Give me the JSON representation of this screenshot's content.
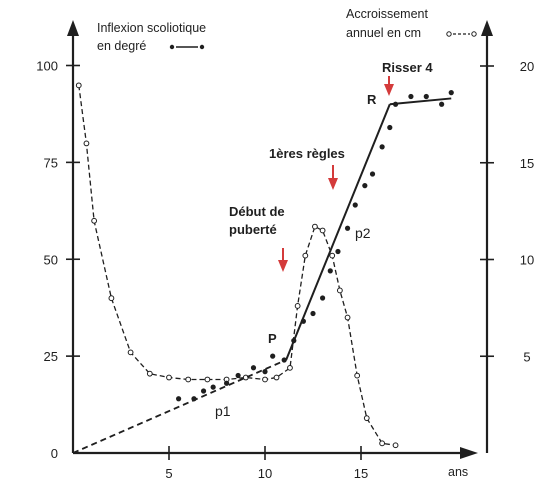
{
  "chart_data": {
    "type": "line",
    "left_axis": {
      "label_line1": "Inflexion scoliotique",
      "label_line2": "en degré",
      "ticks": [
        0,
        25,
        50,
        75,
        100
      ],
      "range": [
        0,
        100
      ]
    },
    "right_axis": {
      "label_line1": "Accroissement",
      "label_line2": "annuel en cm",
      "ticks": [
        5,
        10,
        15,
        20
      ],
      "range": [
        0,
        20
      ]
    },
    "x_axis": {
      "label": "ans",
      "ticks": [
        5,
        10,
        15
      ],
      "range": [
        0,
        21
      ]
    },
    "series": [
      {
        "name": "Inflexion scoliotique en degré",
        "axis": "left",
        "style": "solid",
        "fit": [
          [
            0,
            0
          ],
          [
            11.1,
            24
          ],
          [
            16.5,
            90
          ],
          [
            19.7,
            91.5
          ]
        ],
        "points": [
          [
            5.5,
            14
          ],
          [
            6.3,
            14
          ],
          [
            6.8,
            16
          ],
          [
            7.3,
            17
          ],
          [
            8.0,
            18
          ],
          [
            8.6,
            20
          ],
          [
            9.4,
            22
          ],
          [
            10.0,
            21
          ],
          [
            10.4,
            25
          ],
          [
            11.0,
            24
          ],
          [
            11.5,
            29
          ],
          [
            12.0,
            34
          ],
          [
            12.5,
            36
          ],
          [
            13.0,
            40
          ],
          [
            13.4,
            47
          ],
          [
            13.8,
            52
          ],
          [
            14.3,
            58
          ],
          [
            14.7,
            64
          ],
          [
            15.2,
            69
          ],
          [
            15.6,
            72
          ],
          [
            16.1,
            79
          ],
          [
            16.5,
            84
          ],
          [
            16.8,
            90
          ],
          [
            17.6,
            92
          ],
          [
            18.4,
            92
          ],
          [
            19.2,
            90
          ],
          [
            19.7,
            93
          ]
        ]
      },
      {
        "name": "Accroissement annuel en cm",
        "axis": "right",
        "style": "dashed",
        "points": [
          [
            0.3,
            19
          ],
          [
            0.7,
            16
          ],
          [
            1.1,
            12
          ],
          [
            2.0,
            8
          ],
          [
            3.0,
            5.2
          ],
          [
            4.0,
            4.1
          ],
          [
            5.0,
            3.9
          ],
          [
            6.0,
            3.8
          ],
          [
            7.0,
            3.8
          ],
          [
            8.0,
            3.8
          ],
          [
            9.0,
            3.9
          ],
          [
            10.0,
            3.8
          ],
          [
            10.6,
            3.9
          ],
          [
            11.3,
            4.4
          ],
          [
            11.7,
            7.6
          ],
          [
            12.1,
            10.2
          ],
          [
            12.6,
            11.7
          ],
          [
            13.0,
            11.5
          ],
          [
            13.5,
            10.2
          ],
          [
            13.9,
            8.4
          ],
          [
            14.3,
            7.0
          ],
          [
            14.8,
            4.0
          ],
          [
            15.3,
            1.8
          ],
          [
            16.1,
            0.5
          ],
          [
            16.8,
            0.4
          ]
        ]
      }
    ],
    "annotations": {
      "debut_l1": "Début de",
      "debut_l2": "puberté",
      "regles": "1ères règles",
      "risser": "Risser 4",
      "label_P": "P",
      "label_R": "R",
      "label_p1": "p1",
      "label_p2": "p2"
    },
    "arrow_color": "#d43b3b",
    "line_color": "#1f1f1f"
  }
}
